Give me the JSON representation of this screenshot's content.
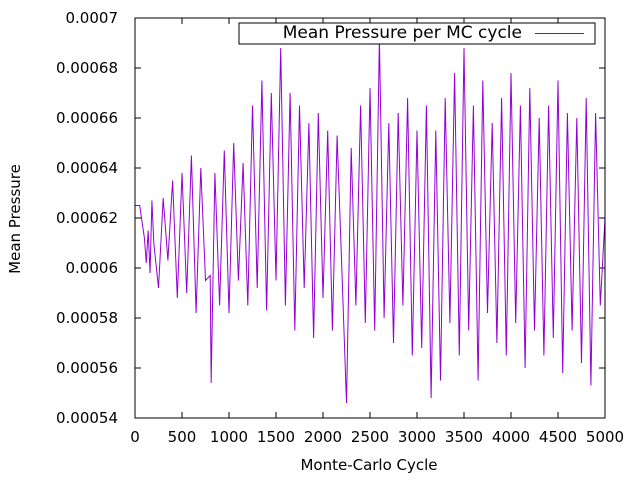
{
  "chart_data": {
    "type": "line",
    "title": "",
    "xlabel": "Monte-Carlo Cycle",
    "ylabel": "Mean Pressure",
    "xlim": [
      0,
      5000
    ],
    "ylim": [
      0.00054,
      0.0007
    ],
    "xticks": [
      0,
      500,
      1000,
      1500,
      2000,
      2500,
      3000,
      3500,
      4000,
      4500,
      5000
    ],
    "xtick_labels": [
      "0",
      "500",
      "1000",
      "1500",
      "2000",
      "2500",
      "3000",
      "3500",
      "4000",
      "4500",
      "5000"
    ],
    "yticks": [
      0.00054,
      0.00056,
      0.00058,
      0.0006,
      0.00062,
      0.00064,
      0.00066,
      0.00068,
      0.0007
    ],
    "ytick_labels": [
      "0.00054",
      "0.00056",
      "0.00058",
      "0.0006",
      "0.00062",
      "0.00064",
      "0.00066",
      "0.00068",
      "0.0007"
    ],
    "grid": false,
    "legend_position": "top-right",
    "series": [
      {
        "name": "Mean Pressure per MC cycle",
        "color": "#9400d3",
        "x": [
          0,
          50,
          100,
          120,
          140,
          160,
          180,
          200,
          250,
          300,
          350,
          400,
          450,
          500,
          550,
          600,
          650,
          700,
          750,
          800,
          810,
          850,
          900,
          950,
          1000,
          1050,
          1100,
          1150,
          1200,
          1250,
          1300,
          1350,
          1400,
          1450,
          1500,
          1550,
          1600,
          1650,
          1700,
          1750,
          1800,
          1850,
          1900,
          1950,
          2000,
          2050,
          2100,
          2150,
          2200,
          2250,
          2300,
          2350,
          2400,
          2450,
          2500,
          2550,
          2600,
          2650,
          2700,
          2750,
          2800,
          2850,
          2900,
          2950,
          3000,
          3050,
          3100,
          3150,
          3200,
          3250,
          3300,
          3350,
          3400,
          3450,
          3500,
          3550,
          3600,
          3650,
          3700,
          3750,
          3800,
          3850,
          3900,
          3950,
          4000,
          4050,
          4100,
          4150,
          4200,
          4250,
          4300,
          4350,
          4400,
          4450,
          4500,
          4550,
          4600,
          4650,
          4700,
          4750,
          4800,
          4850,
          4900,
          4950,
          5000
        ],
        "y": [
          0.000625,
          0.000625,
          0.000612,
          0.000602,
          0.000615,
          0.000598,
          0.000627,
          0.00061,
          0.000592,
          0.000628,
          0.000603,
          0.000635,
          0.000588,
          0.000638,
          0.00059,
          0.000645,
          0.000582,
          0.00064,
          0.000595,
          0.000597,
          0.000554,
          0.000638,
          0.000585,
          0.000647,
          0.000582,
          0.00065,
          0.000595,
          0.000642,
          0.000585,
          0.000665,
          0.000592,
          0.000675,
          0.000583,
          0.00067,
          0.000595,
          0.000688,
          0.000585,
          0.00067,
          0.000575,
          0.000665,
          0.000592,
          0.000658,
          0.000572,
          0.000662,
          0.000588,
          0.000655,
          0.000575,
          0.000653,
          0.0006,
          0.000546,
          0.000648,
          0.000585,
          0.000665,
          0.000578,
          0.000672,
          0.000575,
          0.000692,
          0.00058,
          0.000658,
          0.00057,
          0.000662,
          0.000585,
          0.000668,
          0.000565,
          0.000655,
          0.000568,
          0.000665,
          0.000548,
          0.000655,
          0.000555,
          0.000668,
          0.000578,
          0.000678,
          0.000565,
          0.000688,
          0.000575,
          0.000665,
          0.000555,
          0.000675,
          0.000582,
          0.000658,
          0.00057,
          0.000668,
          0.000565,
          0.000678,
          0.000578,
          0.000665,
          0.00056,
          0.000672,
          0.000575,
          0.00066,
          0.000565,
          0.000665,
          0.000572,
          0.000675,
          0.000558,
          0.000662,
          0.000575,
          0.00066,
          0.000562,
          0.000668,
          0.000553,
          0.000662,
          0.000585,
          0.00062
        ]
      }
    ]
  },
  "legend": {
    "label": "Mean Pressure per MC cycle"
  }
}
